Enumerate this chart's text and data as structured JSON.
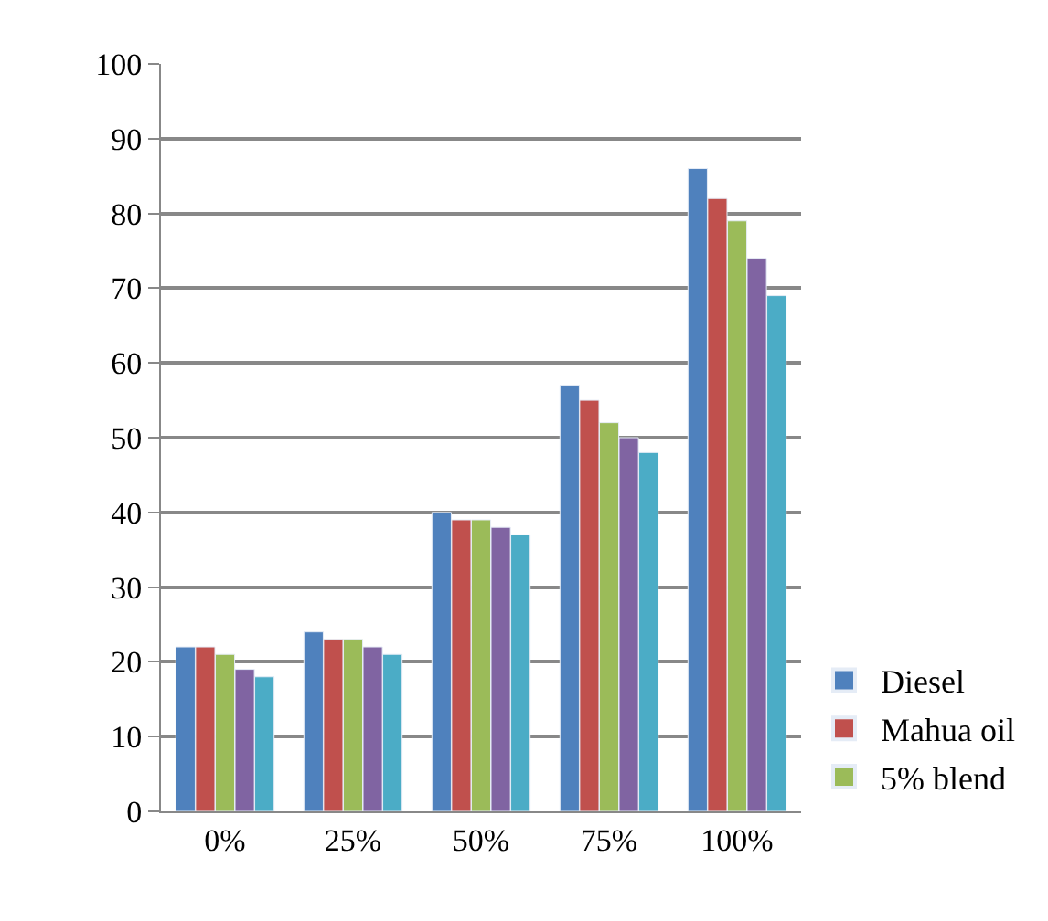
{
  "chart_data": {
    "type": "bar",
    "categories": [
      "0%",
      "25%",
      "50%",
      "75%",
      "100%"
    ],
    "series": [
      {
        "name": "Diesel",
        "color": "#4f81bd",
        "values": [
          22,
          24,
          40,
          57,
          86
        ]
      },
      {
        "name": "Mahua oil",
        "color": "#c0504d",
        "values": [
          22,
          23,
          39,
          55,
          82
        ]
      },
      {
        "name": "5% blend",
        "color": "#9bbb59",
        "values": [
          21,
          23,
          39,
          52,
          79
        ]
      },
      {
        "color": "#8064a2",
        "values": [
          19,
          22,
          38,
          50,
          74
        ]
      },
      {
        "color": "#4bacc6",
        "values": [
          18,
          21,
          37,
          48,
          69
        ]
      }
    ],
    "ylim": [
      0,
      100
    ],
    "yticks": [
      0,
      10,
      20,
      30,
      40,
      50,
      60,
      70,
      80,
      90,
      100
    ],
    "grid": "y",
    "legend": "bottom right"
  }
}
